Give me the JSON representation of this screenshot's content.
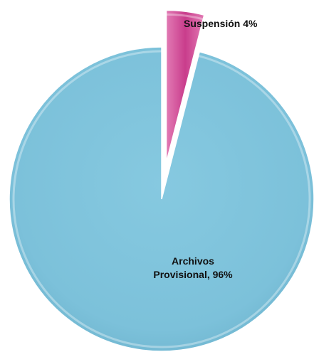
{
  "chart_data": {
    "type": "pie",
    "title": "",
    "slices": [
      {
        "label": "Suspensión",
        "value": 4,
        "color": "#d14a96"
      },
      {
        "label": "Archivos Provisional",
        "value": 96,
        "color": "#7fc3dd"
      }
    ],
    "data_labels": {
      "suspension": "Suspensión 4%",
      "archivos_line1": "Archivos",
      "archivos_line2": "Provisional, 96%"
    },
    "exploded": true,
    "style": "3d-bevel",
    "legend": "none"
  }
}
